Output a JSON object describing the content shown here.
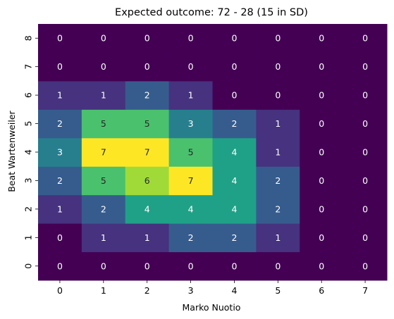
{
  "chart_data": {
    "type": "heatmap",
    "title": "Expected outcome: 72 - 28 (15 in SD)",
    "xlabel": "Marko Nuotio",
    "ylabel": "Beat Wartenweiler",
    "x_categories": [
      "0",
      "1",
      "2",
      "3",
      "4",
      "5",
      "6",
      "7"
    ],
    "y_categories": [
      "0",
      "1",
      "2",
      "3",
      "4",
      "5",
      "6",
      "7",
      "8"
    ],
    "values": [
      [
        0,
        0,
        0,
        0,
        0,
        0,
        0,
        0
      ],
      [
        0,
        1,
        1,
        2,
        2,
        1,
        0,
        0
      ],
      [
        1,
        2,
        4,
        4,
        4,
        2,
        0,
        0
      ],
      [
        2,
        5,
        6,
        7,
        4,
        2,
        0,
        0
      ],
      [
        3,
        7,
        7,
        5,
        4,
        1,
        0,
        0
      ],
      [
        2,
        5,
        5,
        3,
        2,
        1,
        0,
        0
      ],
      [
        1,
        1,
        2,
        1,
        0,
        0,
        0,
        0
      ],
      [
        0,
        0,
        0,
        0,
        0,
        0,
        0,
        0
      ],
      [
        0,
        0,
        0,
        0,
        0,
        0,
        0,
        0
      ]
    ],
    "colorscale": "viridis",
    "vmin": 0,
    "vmax": 7,
    "annotations": true,
    "y_order": "descending-top-to-bottom"
  }
}
